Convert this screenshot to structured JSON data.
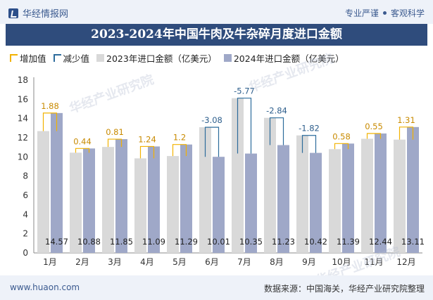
{
  "header": {
    "brand": "华经情报网",
    "tagline_left": "专业严谨",
    "tagline_right": "客观科学",
    "title": "2023-2024年中国牛肉及牛杂碎月度进口金额"
  },
  "legend": {
    "increase": "增加值",
    "decrease": "减少值",
    "series_2023": "2023年进口金额（亿美元）",
    "series_2024": "2024年进口金额（亿美元）"
  },
  "footer": {
    "url": "www.huaon.com",
    "source": "数据来源：中国海关，华经产业研究院整理"
  },
  "watermark": "华经产业研究院",
  "colors": {
    "bar_2023": "#d9d9d9",
    "bar_2024": "#9fa8c8",
    "increase": "#f2b200",
    "decrease": "#2d6c9c",
    "title_bg": "#2f4c7c"
  },
  "chart_data": {
    "type": "bar",
    "categories": [
      "1月",
      "2月",
      "3月",
      "4月",
      "5月",
      "6月",
      "7月",
      "8月",
      "9月",
      "10月",
      "11月",
      "12月"
    ],
    "series": [
      {
        "name": "2023年进口金额（亿美元）",
        "values": [
          12.69,
          10.44,
          11.04,
          9.85,
          10.09,
          13.09,
          16.12,
          14.07,
          12.24,
          10.81,
          11.89,
          11.8
        ]
      },
      {
        "name": "2024年进口金额（亿美元）",
        "values": [
          14.57,
          10.88,
          11.85,
          11.09,
          11.29,
          10.01,
          10.35,
          11.23,
          10.42,
          11.39,
          12.44,
          13.11
        ]
      }
    ],
    "changes": [
      1.88,
      0.44,
      0.81,
      1.24,
      1.2,
      -3.08,
      -5.77,
      -2.84,
      -1.82,
      0.58,
      0.55,
      1.31
    ],
    "y_ticks": [
      "0",
      "2",
      "4",
      "6",
      "8",
      "10",
      "12",
      "14",
      "16",
      "18"
    ],
    "ylim": [
      0,
      18
    ],
    "grid": false
  }
}
